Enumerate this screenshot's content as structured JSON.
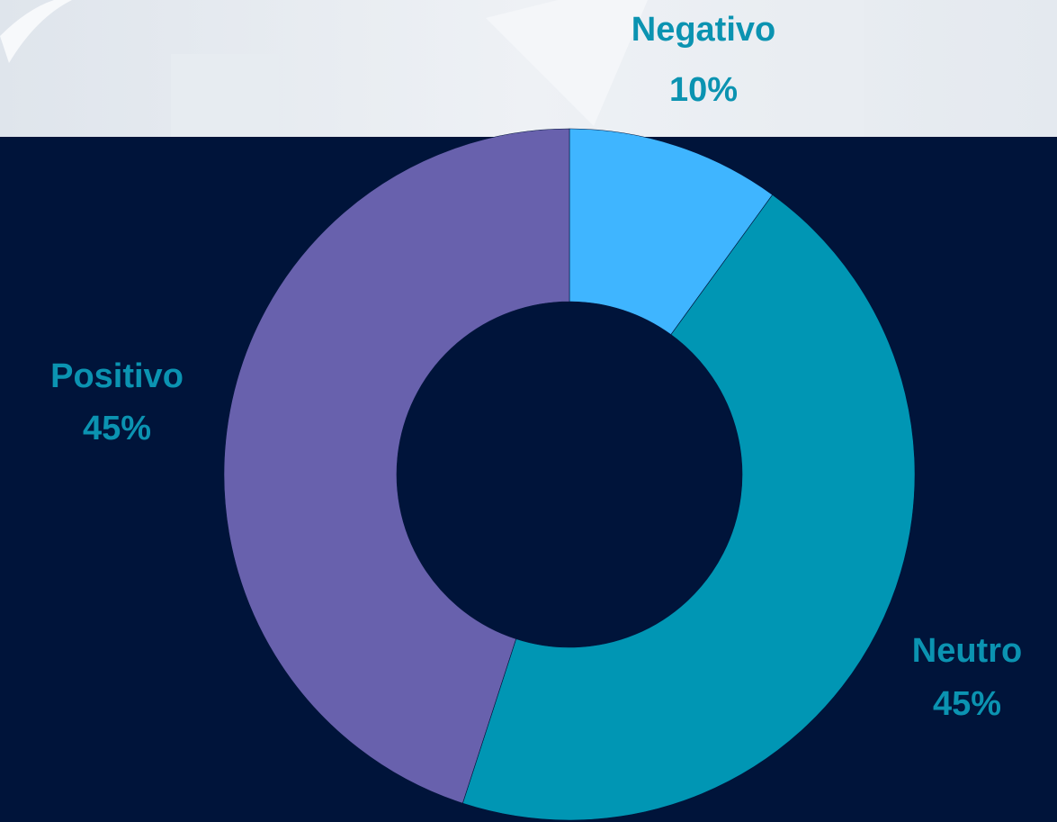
{
  "chart_data": {
    "type": "donut",
    "categories": [
      "Negativo",
      "Neutro",
      "Positivo"
    ],
    "values": [
      10,
      45,
      45
    ],
    "value_labels": [
      "10%",
      "45%",
      "45%"
    ],
    "colors": [
      "#3fb5ff",
      "#0096b4",
      "#6861ad"
    ],
    "label_color": "#0b93b1"
  }
}
